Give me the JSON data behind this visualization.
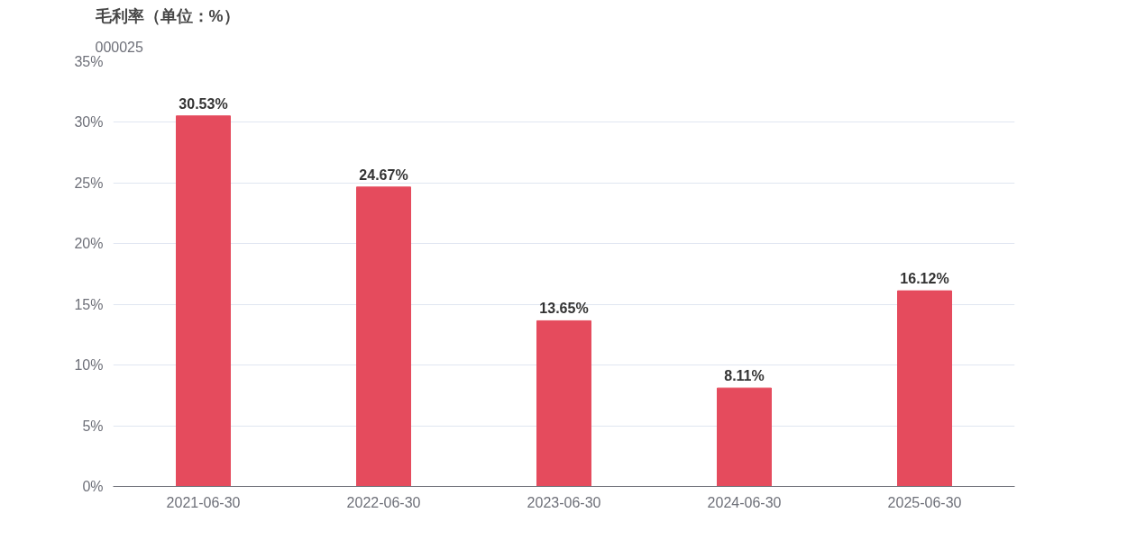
{
  "chart_data": {
    "type": "bar",
    "title": "毛利率（单位：%）",
    "subtitle": "000025",
    "categories": [
      "2021-06-30",
      "2022-06-30",
      "2023-06-30",
      "2024-06-30",
      "2025-06-30"
    ],
    "values": [
      30.53,
      24.67,
      13.65,
      8.11,
      16.12
    ],
    "value_labels": [
      "30.53%",
      "24.67%",
      "13.65%",
      "8.11%",
      "16.12%"
    ],
    "color": "#e54b5d",
    "ylim": [
      0,
      35
    ],
    "yticks": [
      {
        "value": 0,
        "label": "0%"
      },
      {
        "value": 5,
        "label": "5%"
      },
      {
        "value": 10,
        "label": "10%"
      },
      {
        "value": 15,
        "label": "15%"
      },
      {
        "value": 20,
        "label": "20%"
      },
      {
        "value": 25,
        "label": "25%"
      },
      {
        "value": 30,
        "label": "30%"
      },
      {
        "value": 35,
        "label": "35%"
      }
    ],
    "grid": "y"
  }
}
